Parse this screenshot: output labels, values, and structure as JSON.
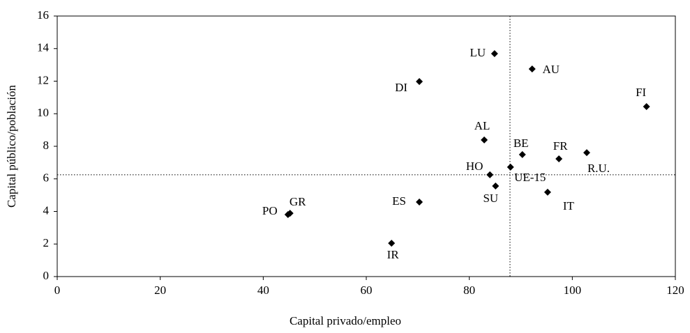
{
  "chart_data": {
    "type": "scatter",
    "xlabel": "Capital privado/empleo",
    "ylabel": "Capital público/población",
    "points": [
      {
        "label": "LU",
        "x": 84.9,
        "y": 13.69
      },
      {
        "label": "AU",
        "x": 92.2,
        "y": 12.75
      },
      {
        "label": "DI",
        "x": 70.3,
        "y": 11.98
      },
      {
        "label": "FI",
        "x": 114.4,
        "y": 10.44
      },
      {
        "label": "AL",
        "x": 82.9,
        "y": 8.39
      },
      {
        "label": "BE",
        "x": 90.3,
        "y": 7.49
      },
      {
        "label": "FR",
        "x": 97.4,
        "y": 7.23
      },
      {
        "label": "R.U.",
        "x": 102.8,
        "y": 7.61
      },
      {
        "label": "HO",
        "x": 84.0,
        "y": 6.25
      },
      {
        "label": "UE-15",
        "x": 88.0,
        "y": 6.72
      },
      {
        "label": "SU",
        "x": 85.1,
        "y": 5.56
      },
      {
        "label": "IT",
        "x": 95.2,
        "y": 5.18
      },
      {
        "label": "ES",
        "x": 70.3,
        "y": 4.58
      },
      {
        "label": "GR",
        "x": 45.2,
        "y": 3.89
      },
      {
        "label": "PO",
        "x": 44.8,
        "y": 3.81
      },
      {
        "label": "IR",
        "x": 64.9,
        "y": 2.05
      }
    ],
    "color": "#000000",
    "ref_x": 87.9,
    "ref_y": 6.25,
    "xlim": [
      0,
      120
    ],
    "xticks": [
      0,
      20,
      40,
      60,
      80,
      100,
      120
    ],
    "ylim": [
      0,
      16
    ],
    "yticks": [
      0,
      2,
      4,
      6,
      8,
      10,
      12,
      14,
      16
    ]
  }
}
